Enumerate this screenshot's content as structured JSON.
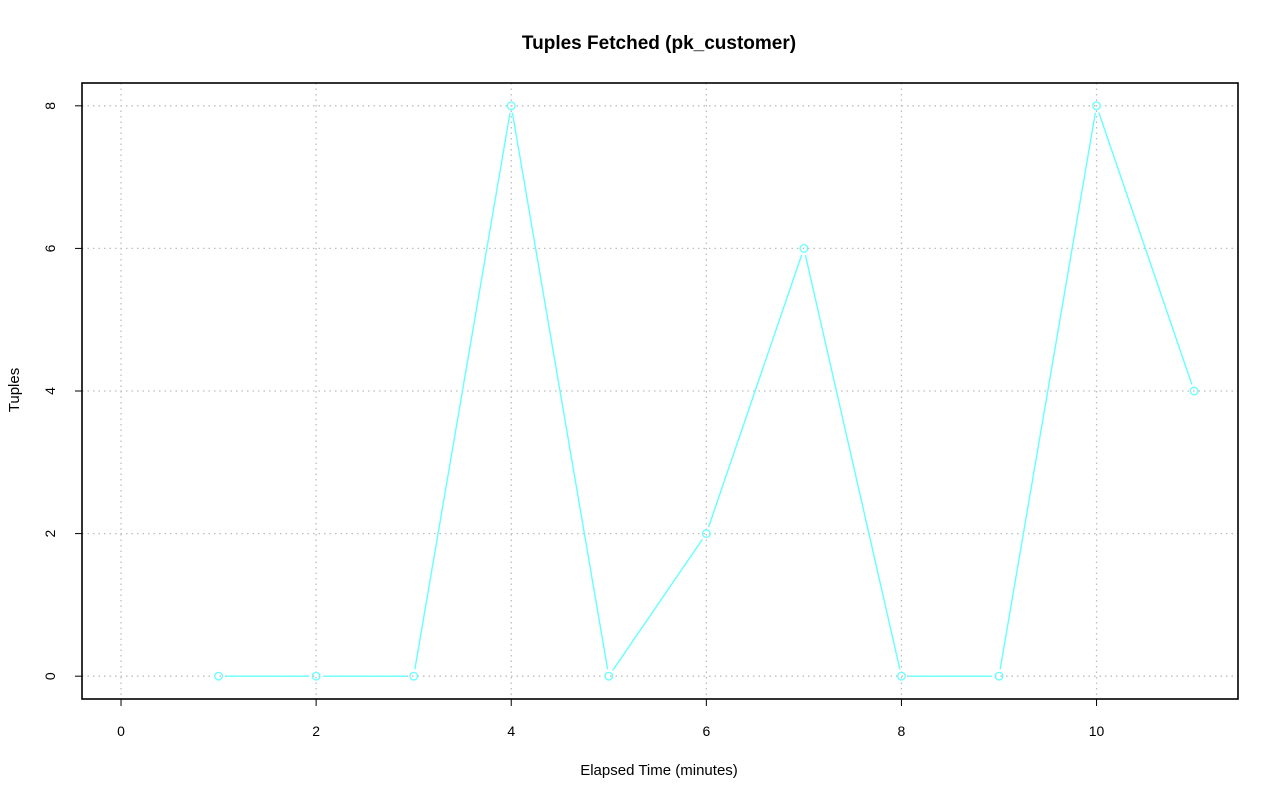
{
  "chart_data": {
    "type": "line",
    "title": "Tuples Fetched (pk_customer)",
    "xlabel": "Elapsed Time (minutes)",
    "ylabel": "Tuples",
    "xlim": [
      -0.4,
      11.45
    ],
    "ylim": [
      -0.32,
      8.32
    ],
    "x_ticks": [
      0,
      2,
      4,
      6,
      8,
      10
    ],
    "y_ticks": [
      0,
      2,
      4,
      6,
      8
    ],
    "grid": true,
    "series": [
      {
        "color": "#66ffff",
        "marker": "open-circle",
        "x": [
          1,
          2,
          3,
          4,
          5,
          6,
          7,
          8,
          9,
          10,
          11
        ],
        "values": [
          0,
          0,
          0,
          8,
          0,
          2,
          6,
          0,
          0,
          8,
          4
        ]
      }
    ]
  }
}
